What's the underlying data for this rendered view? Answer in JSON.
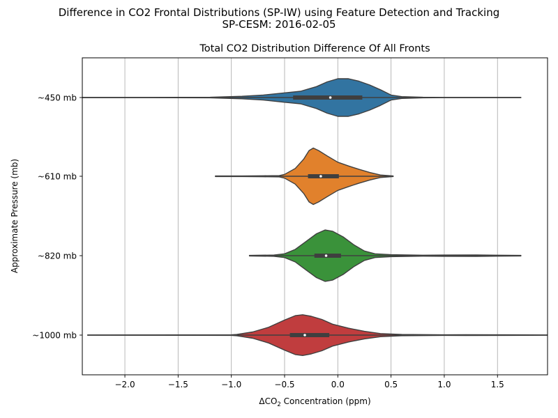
{
  "figure": {
    "suptitle_line1": "Difference in CO2 Frontal Distributions (SP-IW) using Feature Detection and Tracking",
    "suptitle_line2": "SP-CESM: 2016-02-05"
  },
  "chart_data": {
    "type": "violin",
    "orientation": "horizontal",
    "title": "Total CO2 Distribution Difference Of All Fronts",
    "xlabel_prefix": "ΔCO",
    "xlabel_sub": "2",
    "xlabel_suffix": " Concentration (ppm)",
    "ylabel": "Approximate Pressure (mb)",
    "xlim": [
      -2.4,
      1.97
    ],
    "xticks": [
      -2.0,
      -1.5,
      -1.0,
      -0.5,
      0.0,
      0.5,
      1.0,
      1.5
    ],
    "xtick_labels": [
      "−2.0",
      "−1.5",
      "−1.0",
      "−0.5",
      "0.0",
      "0.5",
      "1.0",
      "1.5"
    ],
    "grid": "x",
    "categories": [
      "~450 mb",
      "~610 mb",
      "~820 mb",
      "~1000 mb"
    ],
    "series": [
      {
        "color": "#3274a1",
        "min": -2.5,
        "max": 1.72,
        "q1": -0.42,
        "median": -0.07,
        "q3": 0.23,
        "density": [
          [
            -2.5,
            0.005
          ],
          [
            -1.8,
            0.005
          ],
          [
            -1.2,
            0.01
          ],
          [
            -0.9,
            0.04
          ],
          [
            -0.7,
            0.08
          ],
          [
            -0.5,
            0.15
          ],
          [
            -0.35,
            0.2
          ],
          [
            -0.2,
            0.35
          ],
          [
            -0.1,
            0.5
          ],
          [
            0.0,
            0.6
          ],
          [
            0.1,
            0.6
          ],
          [
            0.2,
            0.52
          ],
          [
            0.3,
            0.4
          ],
          [
            0.4,
            0.25
          ],
          [
            0.5,
            0.08
          ],
          [
            0.6,
            0.03
          ],
          [
            0.8,
            0.01
          ],
          [
            1.0,
            0.005
          ],
          [
            1.72,
            0.004
          ]
        ]
      },
      {
        "color": "#e1812c",
        "min": -1.15,
        "max": 0.52,
        "q1": -0.28,
        "median": -0.16,
        "q3": 0.01,
        "density": [
          [
            -1.15,
            0.008
          ],
          [
            -0.9,
            0.01
          ],
          [
            -0.7,
            0.015
          ],
          [
            -0.55,
            0.02
          ],
          [
            -0.5,
            0.06
          ],
          [
            -0.4,
            0.25
          ],
          [
            -0.32,
            0.55
          ],
          [
            -0.27,
            0.82
          ],
          [
            -0.23,
            0.9
          ],
          [
            -0.18,
            0.82
          ],
          [
            -0.1,
            0.65
          ],
          [
            0.0,
            0.45
          ],
          [
            0.1,
            0.33
          ],
          [
            0.2,
            0.22
          ],
          [
            0.3,
            0.12
          ],
          [
            0.4,
            0.04
          ],
          [
            0.52,
            0.01
          ]
        ]
      },
      {
        "color": "#3a923a",
        "min": -0.83,
        "max": 1.72,
        "q1": -0.22,
        "median": -0.11,
        "q3": 0.03,
        "density": [
          [
            -0.83,
            0.01
          ],
          [
            -0.6,
            0.02
          ],
          [
            -0.5,
            0.06
          ],
          [
            -0.4,
            0.2
          ],
          [
            -0.3,
            0.45
          ],
          [
            -0.2,
            0.7
          ],
          [
            -0.12,
            0.82
          ],
          [
            -0.05,
            0.78
          ],
          [
            0.05,
            0.6
          ],
          [
            0.15,
            0.35
          ],
          [
            0.25,
            0.15
          ],
          [
            0.35,
            0.06
          ],
          [
            0.5,
            0.03
          ],
          [
            0.8,
            0.015
          ],
          [
            1.0,
            0.02
          ],
          [
            1.3,
            0.025
          ],
          [
            1.5,
            0.015
          ],
          [
            1.72,
            0.01
          ]
        ]
      },
      {
        "color": "#c03d3e",
        "min": -2.35,
        "max": 2.05,
        "q1": -0.45,
        "median": -0.31,
        "q3": -0.08,
        "density": [
          [
            -2.35,
            0.005
          ],
          [
            -1.5,
            0.006
          ],
          [
            -1.0,
            0.01
          ],
          [
            -0.95,
            0.02
          ],
          [
            -0.8,
            0.1
          ],
          [
            -0.65,
            0.25
          ],
          [
            -0.5,
            0.48
          ],
          [
            -0.4,
            0.62
          ],
          [
            -0.33,
            0.65
          ],
          [
            -0.25,
            0.6
          ],
          [
            -0.15,
            0.5
          ],
          [
            -0.05,
            0.35
          ],
          [
            0.1,
            0.22
          ],
          [
            0.25,
            0.12
          ],
          [
            0.4,
            0.05
          ],
          [
            0.6,
            0.02
          ],
          [
            1.0,
            0.01
          ],
          [
            1.2,
            0.012
          ],
          [
            1.6,
            0.01
          ],
          [
            2.05,
            0.004
          ]
        ]
      }
    ]
  }
}
